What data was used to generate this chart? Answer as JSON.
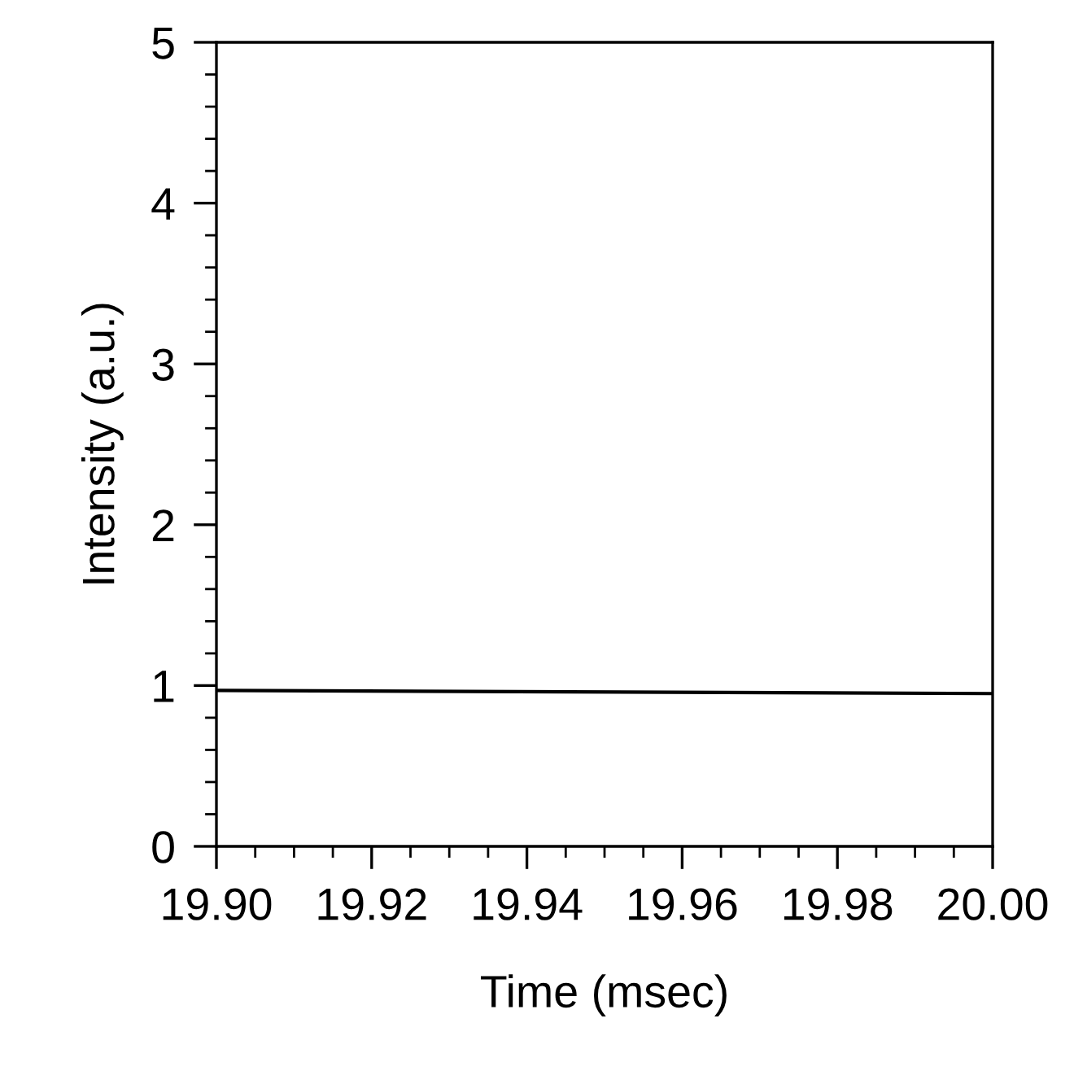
{
  "chart_data": {
    "type": "line",
    "xlabel": "Time (msec)",
    "ylabel": "Intensity (a.u.)",
    "x": [
      19.9,
      20.0
    ],
    "series": [
      {
        "color": "#000000",
        "values": [
          0.97,
          0.95
        ]
      }
    ],
    "xlim": [
      19.9,
      20.0
    ],
    "xticks": [
      {
        "value": 19.9,
        "label": "19.90"
      },
      {
        "value": 19.905,
        "label": null
      },
      {
        "value": 19.91,
        "label": null
      },
      {
        "value": 19.915,
        "label": null
      },
      {
        "value": 19.92,
        "label": "19.92"
      },
      {
        "value": 19.925,
        "label": null
      },
      {
        "value": 19.93,
        "label": null
      },
      {
        "value": 19.935,
        "label": null
      },
      {
        "value": 19.94,
        "label": "19.94"
      },
      {
        "value": 19.945,
        "label": null
      },
      {
        "value": 19.95,
        "label": null
      },
      {
        "value": 19.955,
        "label": null
      },
      {
        "value": 19.96,
        "label": "19.96"
      },
      {
        "value": 19.965,
        "label": null
      },
      {
        "value": 19.97,
        "label": null
      },
      {
        "value": 19.975,
        "label": null
      },
      {
        "value": 19.98,
        "label": "19.98"
      },
      {
        "value": 19.985,
        "label": null
      },
      {
        "value": 19.99,
        "label": null
      },
      {
        "value": 19.995,
        "label": null
      },
      {
        "value": 20.0,
        "label": "20.00"
      }
    ],
    "ylim": [
      0,
      5
    ],
    "yticks": [
      0,
      {
        "value": 0.2,
        "label": null
      },
      {
        "value": 0.4,
        "label": null
      },
      {
        "value": 0.6,
        "label": null
      },
      {
        "value": 0.8,
        "label": null
      },
      1,
      {
        "value": 1.2,
        "label": null
      },
      {
        "value": 1.4,
        "label": null
      },
      {
        "value": 1.6,
        "label": null
      },
      {
        "value": 1.8,
        "label": null
      },
      2,
      {
        "value": 2.2,
        "label": null
      },
      {
        "value": 2.4,
        "label": null
      },
      {
        "value": 2.6,
        "label": null
      },
      {
        "value": 2.8,
        "label": null
      },
      3,
      {
        "value": 3.2,
        "label": null
      },
      {
        "value": 3.4,
        "label": null
      },
      {
        "value": 3.6,
        "label": null
      },
      {
        "value": 3.8,
        "label": null
      },
      4,
      {
        "value": 4.2,
        "label": null
      },
      {
        "value": 4.4,
        "label": null
      },
      {
        "value": 4.6,
        "label": null
      },
      {
        "value": 4.8,
        "label": null
      },
      5
    ],
    "grid": false,
    "legend": false,
    "marker": "none",
    "line_style": "solid"
  }
}
